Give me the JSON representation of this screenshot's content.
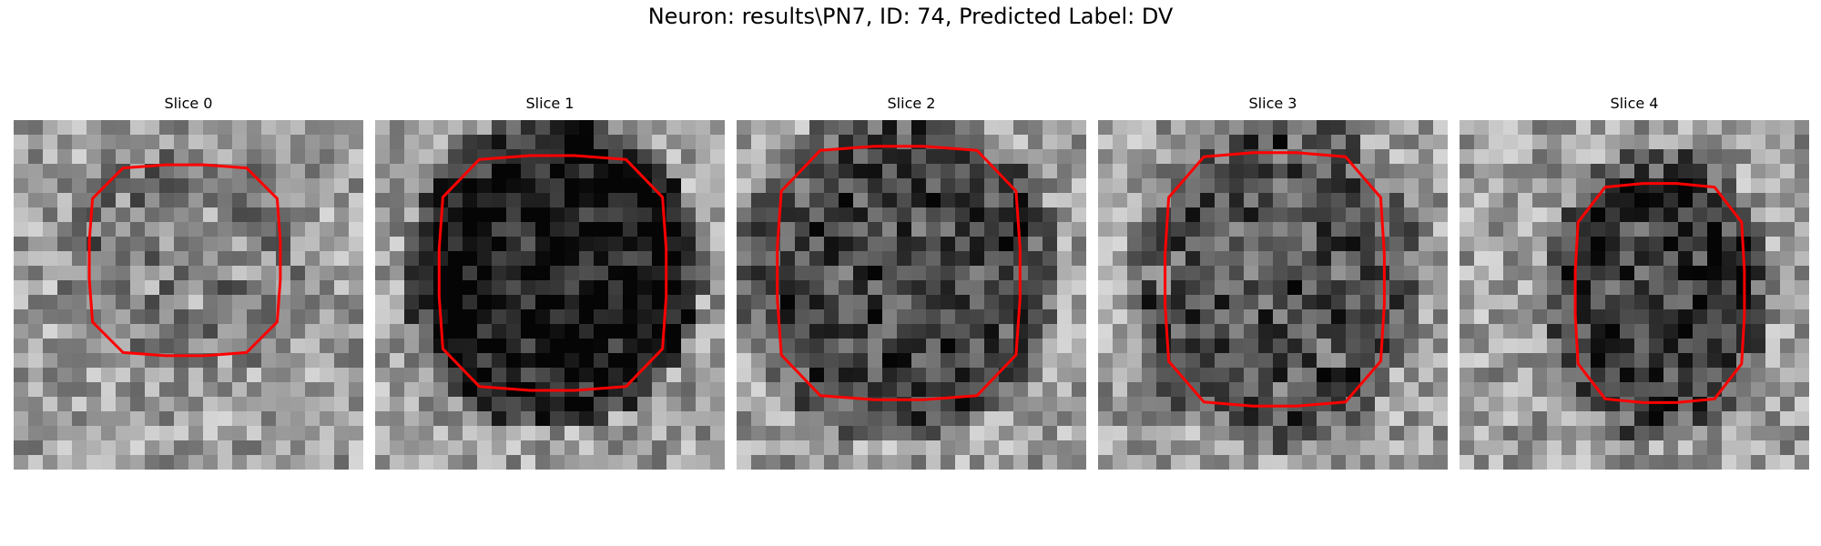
{
  "figure": {
    "title": "Neuron: results\\PN7, ID: 74, Predicted Label: DV",
    "contour_color": "#ff0000"
  },
  "panels": [
    {
      "title": "Slice 0"
    },
    {
      "title": "Slice 1"
    },
    {
      "title": "Slice 2"
    },
    {
      "title": "Slice 3"
    },
    {
      "title": "Slice 4"
    }
  ]
}
